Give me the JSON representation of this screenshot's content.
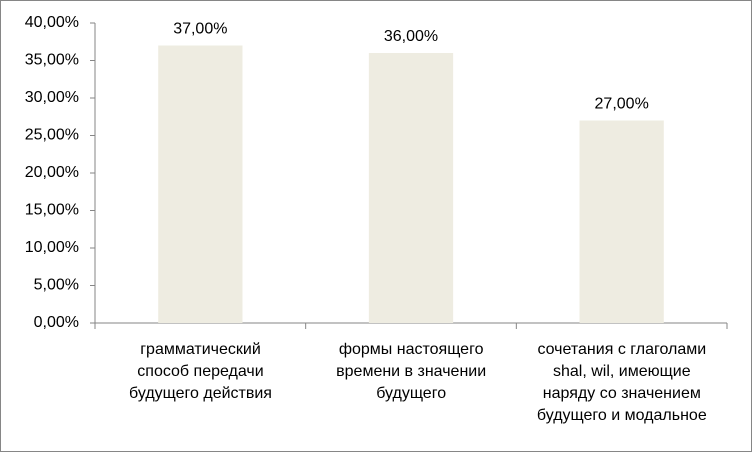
{
  "chart_data": {
    "type": "bar",
    "categories": [
      "грамматический\nспособ передачи\nбудущего действия",
      "формы настоящего\nвремени в значении\nбудущего",
      "сочетания с глаголами\nshal, wil, имеющие\nнаряду со значением\nбудущего и модальное"
    ],
    "values": [
      37,
      36,
      27
    ],
    "value_labels": [
      "37,00%",
      "36,00%",
      "27,00%"
    ],
    "color": "#eeece1",
    "ylim": [
      0,
      40
    ],
    "yticks": [
      {
        "value": 0,
        "label": "0,00%"
      },
      {
        "value": 5,
        "label": "5,00%"
      },
      {
        "value": 10,
        "label": "10,00%"
      },
      {
        "value": 15,
        "label": "15,00%"
      },
      {
        "value": 20,
        "label": "20,00%"
      },
      {
        "value": 25,
        "label": "25,00%"
      },
      {
        "value": 30,
        "label": "30,00%"
      },
      {
        "value": 35,
        "label": "35,00%"
      },
      {
        "value": 40,
        "label": "40,00%"
      }
    ],
    "grid": false
  }
}
